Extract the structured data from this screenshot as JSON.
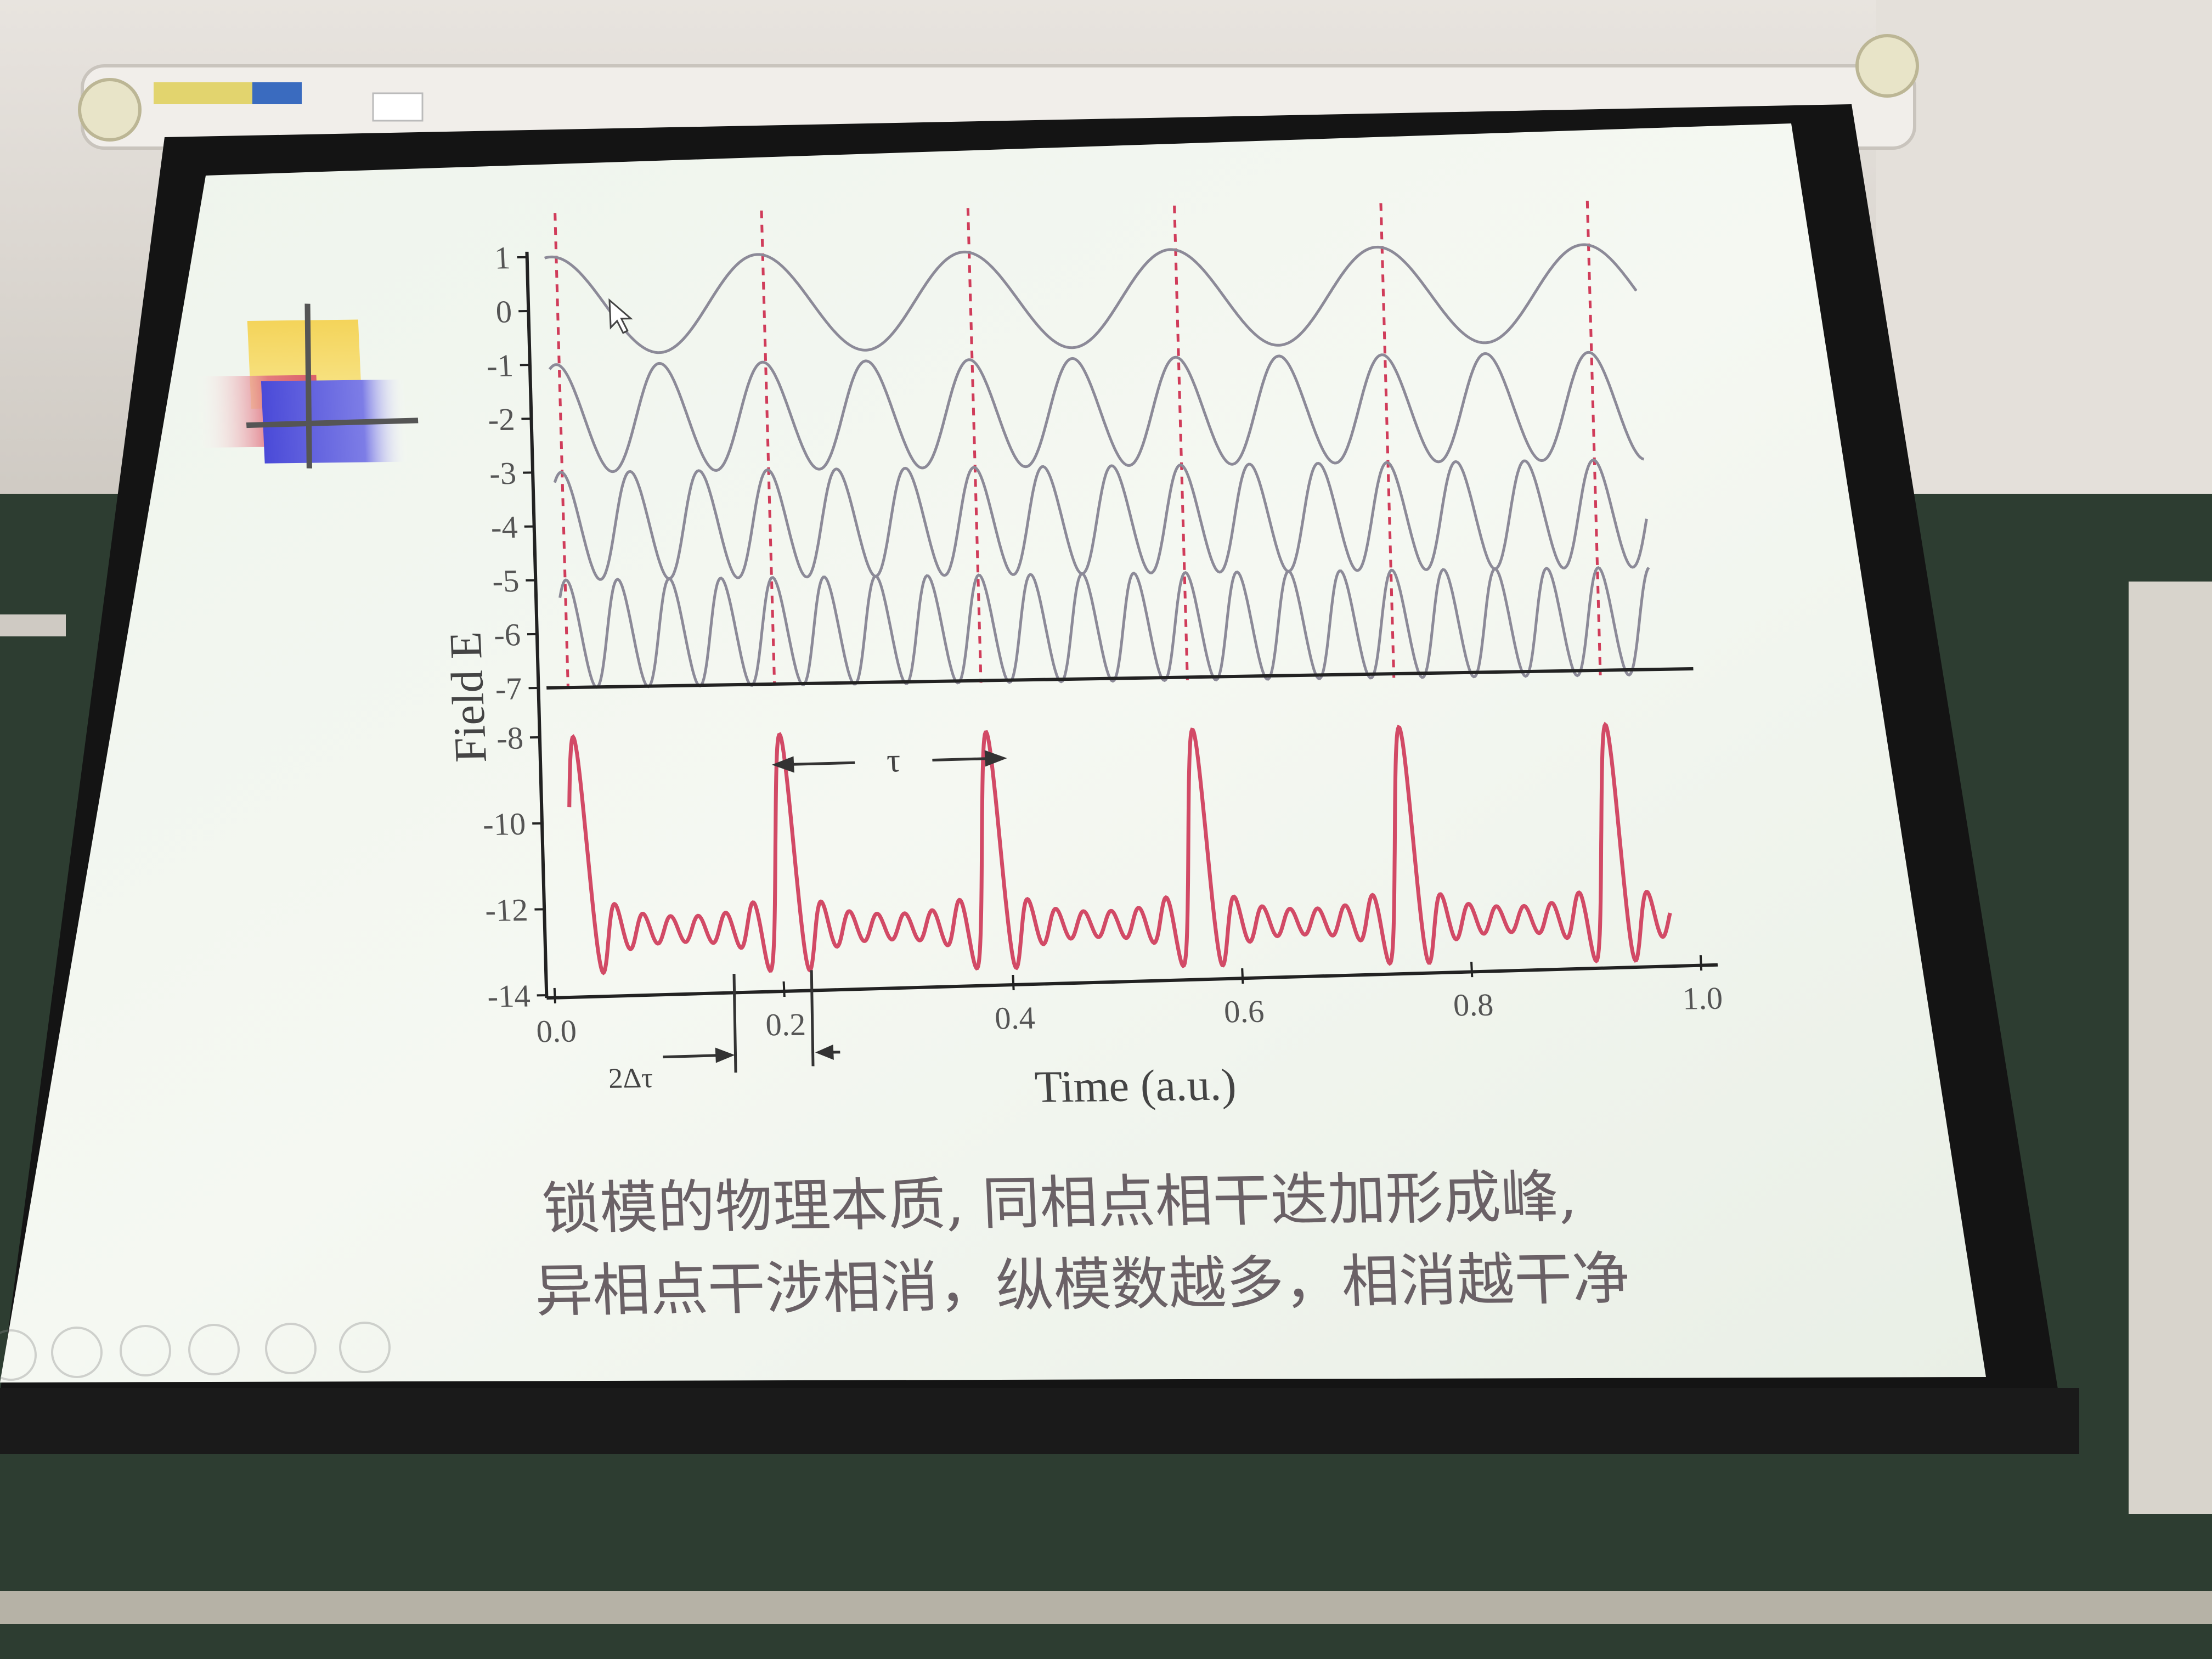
{
  "chart_data": {
    "type": "line",
    "ylabel": "Field E",
    "xlabel": "Time (a.u.)",
    "x_ticks": [
      "0.0",
      "0.2",
      "0.4",
      "0.6",
      "0.8",
      "1.0"
    ],
    "y_ticks": [
      "1",
      "0",
      "-1",
      "-2",
      "-3",
      "-4",
      "-5",
      "-6",
      "-7",
      "-8",
      "-10",
      "-12",
      "-14"
    ],
    "xlim": [
      0.0,
      1.0
    ],
    "ylim": [
      -14,
      1
    ],
    "mode_periods": [
      0.18,
      0.09,
      0.06,
      0.045
    ],
    "pulse_period": 0.18,
    "pulse_peak_times": [
      0.026,
      0.206,
      0.386,
      0.566,
      0.746,
      0.926
    ],
    "colors": {
      "modes": "#8c8a98",
      "sum": "#d24a66",
      "guides": "#d03c5a",
      "axes": "#222222"
    },
    "annotations": {
      "period": "τ",
      "width": "2Δτ"
    }
  },
  "caption": {
    "line1": "锁模的物理本质, 同相点相干迭加形成峰,",
    "line2": "异相点干涉相消，纵模数越多，相消越干净"
  },
  "toolbar": {
    "icons": [
      "arrow-left-icon",
      "arrow-right-icon",
      "pen-icon",
      "slides-icon",
      "zoom-icon",
      "more-icon"
    ]
  }
}
